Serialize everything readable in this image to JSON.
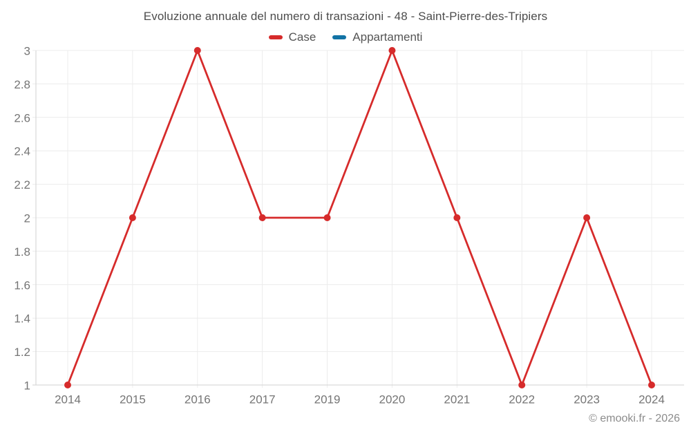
{
  "chart": {
    "watermark": "© emooki.fr - 2026"
  },
  "chart_data": {
    "type": "line",
    "title": "Evoluzione annuale del numero di transazioni - 48 - Saint-Pierre-des-Tripiers",
    "categories": [
      "2014",
      "2015",
      "2016",
      "2017",
      "2019",
      "2020",
      "2021",
      "2022",
      "2023",
      "2024"
    ],
    "series": [
      {
        "name": "Case",
        "color": "#d62b2b",
        "values": [
          1,
          2,
          3,
          2,
          2,
          3,
          2,
          1,
          2,
          1
        ]
      },
      {
        "name": "Appartamenti",
        "color": "#1273a5",
        "values": []
      }
    ],
    "xlabel": "",
    "ylabel": "",
    "ylim": [
      1,
      3
    ],
    "y_ticks": [
      1,
      1.2,
      1.4,
      1.6,
      1.8,
      2,
      2.2,
      2.4,
      2.6,
      2.8,
      3
    ],
    "grid": true,
    "legend_position": "top",
    "marker_radius": 5,
    "line_width": 2.8,
    "theme": {
      "background": "#ffffff",
      "grid_color": "#ececec",
      "axis_border_color": "#d2d2d2",
      "title_color": "#4c4c4c",
      "tick_color": "#757575",
      "legend_text_color": "#545454",
      "watermark_color": "#8c8c8c"
    }
  }
}
